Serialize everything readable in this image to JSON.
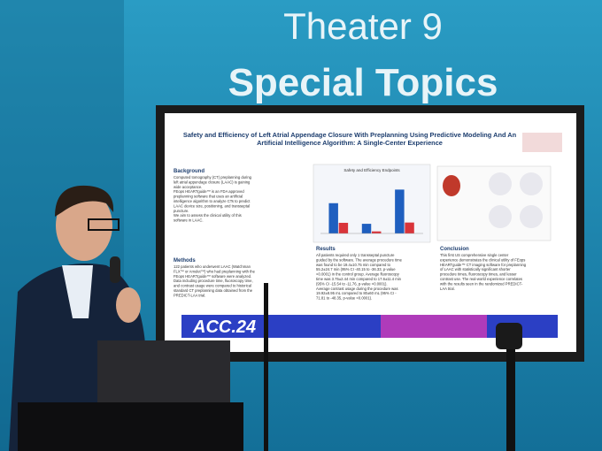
{
  "sign": {
    "line1": "Theater 9",
    "line2": "Special Topics"
  },
  "poster": {
    "title": "Safety and Efficiency of Left Atrial Appendage Closure With Preplanning Using Predictive Modeling And An Artificial Intelligence Algorithm: A Single-Center Experience",
    "sections": [
      {
        "heading": "Background",
        "lines": [
          "Computed tomography (CT) preplanning during",
          "left atrial appendage closure (LAAC) is gaining",
          "wide acceptance.",
          "FEops HEARTguide™ is an FDA approved",
          "preplanning software that uses an artificial",
          "intelligence algorithm to analyze CTs to predict",
          "LAAC device size, positioning, and transseptal",
          "puncture.",
          "We aim to assess the clinical utility of this",
          "software in LAAC."
        ]
      },
      {
        "heading": "Methods",
        "lines": [
          "122 patients who underwent LAAC (Watchman",
          "FLX™ or Amulet™) who had preplanning with the",
          "FEops HEARTguide™ software were analyzed.",
          "Data including procedure time, fluoroscopy time,",
          "and contrast usage were compared to historical",
          "standard CT preplanning data obtained from the",
          "PREDICT-LAA trial."
        ]
      },
      {
        "heading": "Results",
        "lines": [
          "All patients required only 1 transseptal puncture",
          "guided by the software. The average procedure time",
          "was found to be 19.4±10.75 min compared to",
          "55.2±24.7 min (95% CI -40.15 to -36.33, p-value",
          "<0.0001) in the control group. Average fluoroscopy",
          "time was 3.75±2.44 min compared to 17.6±11.4 min",
          "(95% CI -15.54 to -11.76, p-value <0.0001).",
          "Average contrast usage during the procedure was",
          "19.92±8.95 mL compared to 80±60 mL (95% CI -",
          "71.81 to -48.35, p-value <0.0001)."
        ]
      },
      {
        "heading": "Conclusion",
        "lines": [
          "This first US comprehensive single center",
          "experience demonstrates the clinical utility of FEops",
          "HEARTguide™ CT imaging software for preplanning",
          "of LAAC with statistically significant shorter",
          "procedure times, fluoroscopy times, and lesser",
          "contrast use. The real-world experience correlates",
          "with the results seen in the randomized PREDICT-",
          "LAA trial."
        ]
      }
    ],
    "chart": {
      "title": "Safety and Efficiency Endpoints",
      "ylim": [
        0,
        100
      ],
      "series": [
        {
          "color": "#1f5fbf",
          "values": [
            55.2,
            17.6,
            80
          ]
        },
        {
          "color": "#d9343a",
          "values": [
            19.4,
            3.75,
            19.92
          ]
        }
      ]
    },
    "banner": "ACC.24"
  }
}
